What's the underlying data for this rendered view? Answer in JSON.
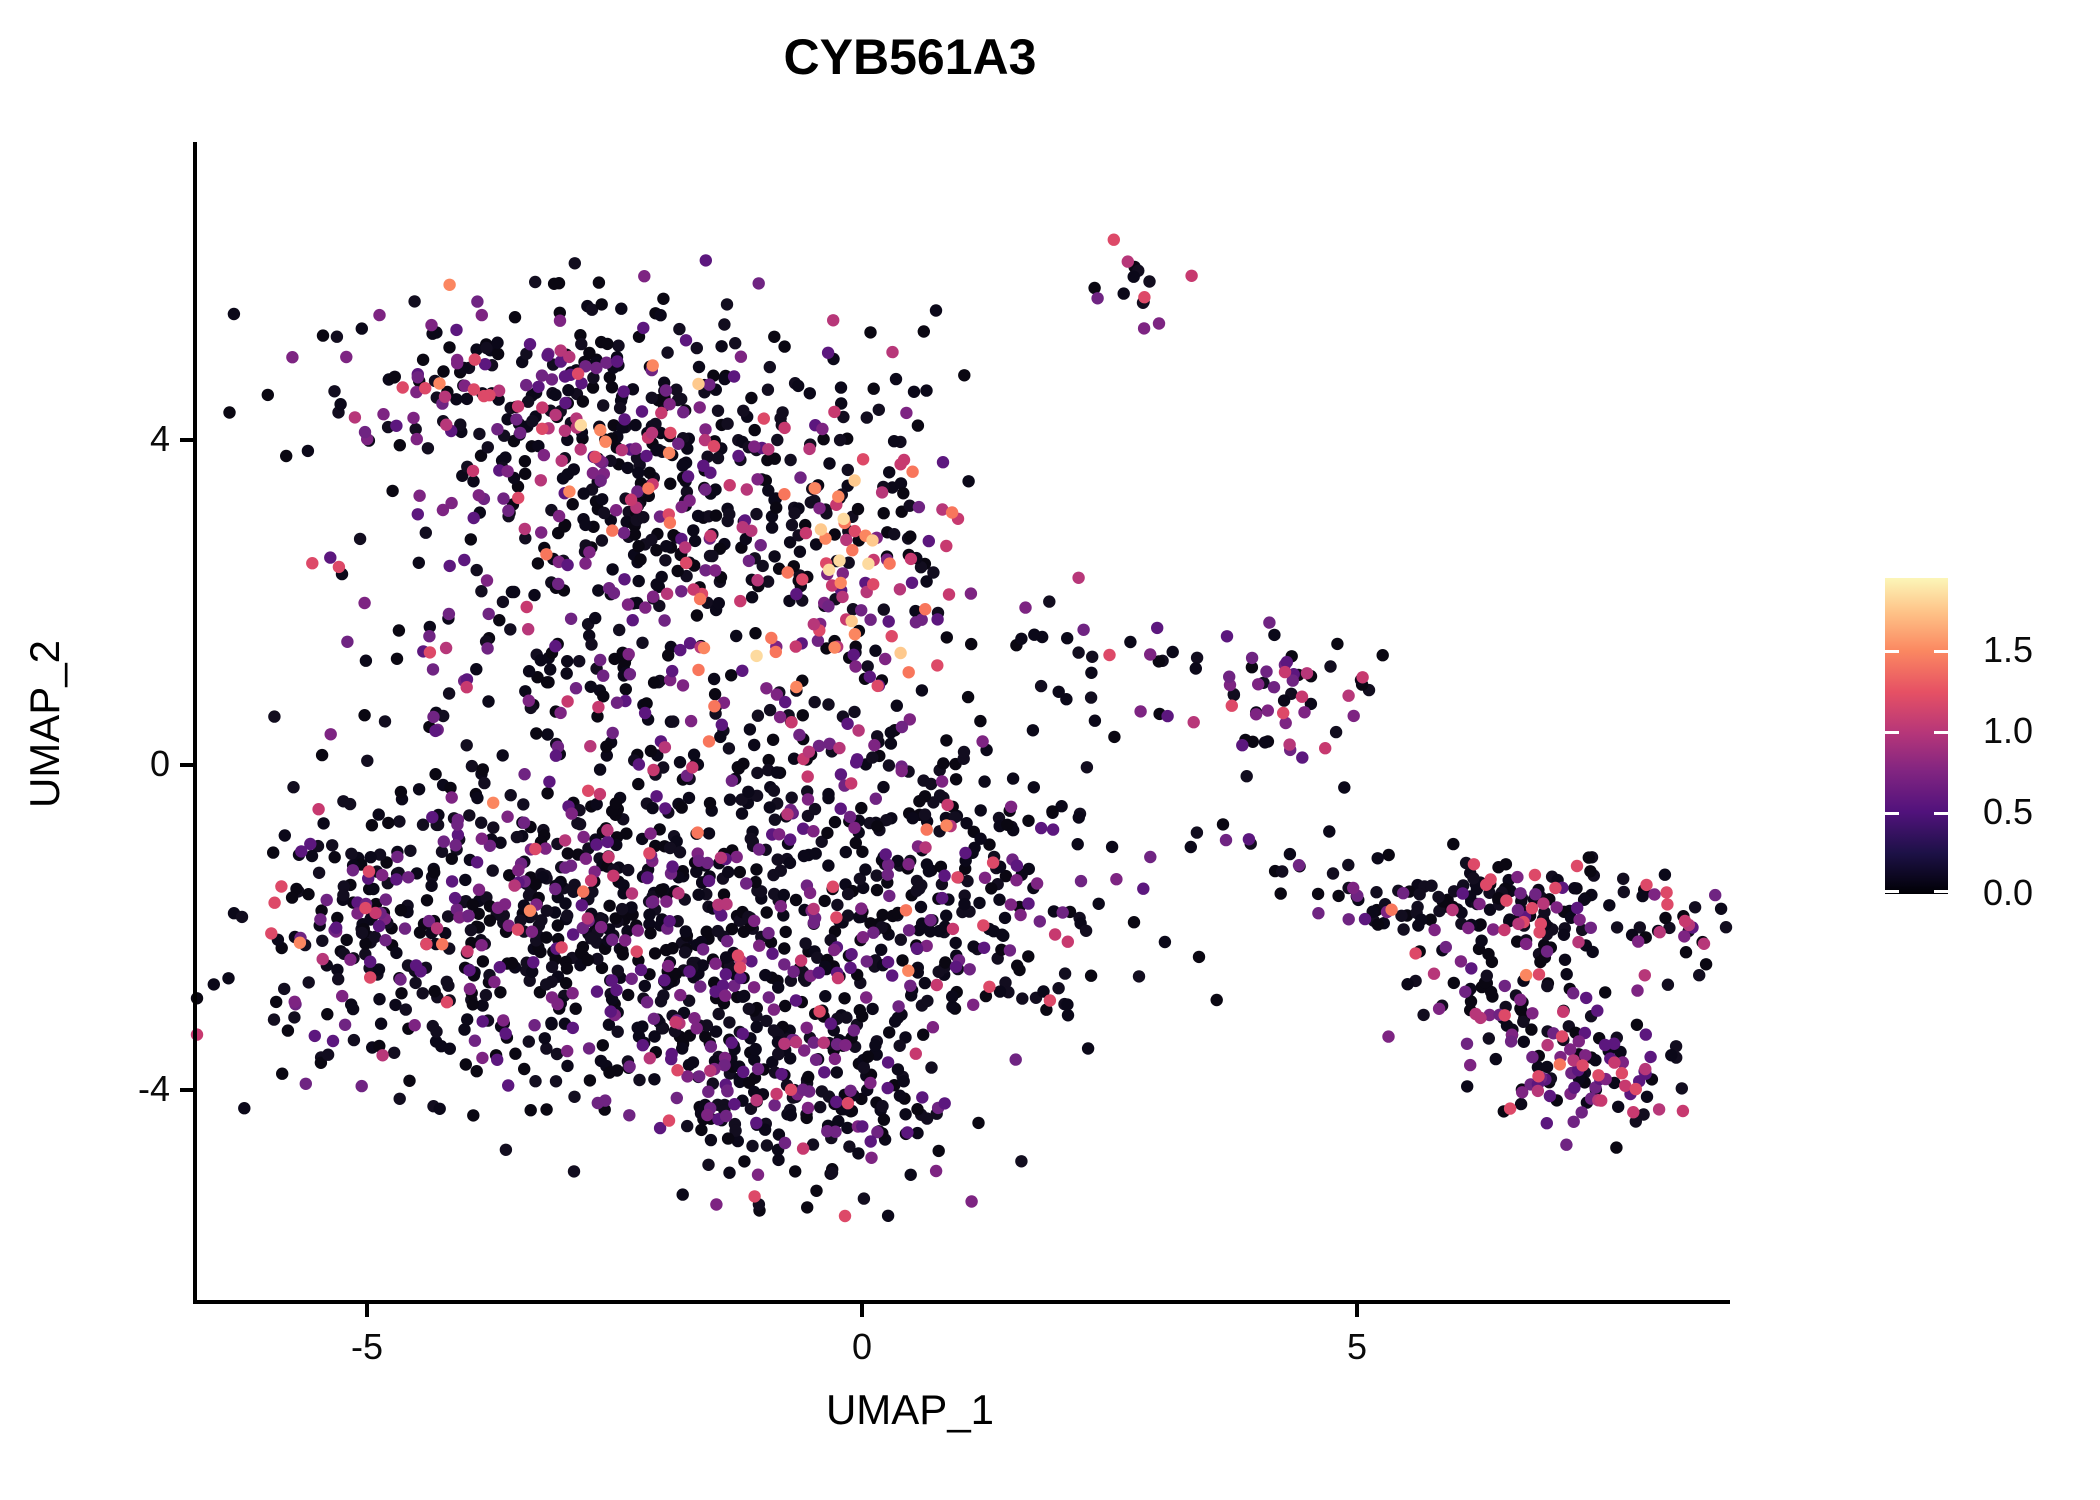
{
  "title": "CYB561A3",
  "chart_data": {
    "type": "scatter",
    "title": "CYB561A3",
    "xlabel": "UMAP_1",
    "ylabel": "UMAP_2",
    "xlim": [
      -6.7,
      8.8
    ],
    "ylim": [
      -6.6,
      7.7
    ],
    "grid": false,
    "x_ticks": [
      {
        "value": -5,
        "label": "-5"
      },
      {
        "value": 0,
        "label": "0"
      },
      {
        "value": 5,
        "label": "5"
      }
    ],
    "y_ticks": [
      {
        "value": 4,
        "label": "4"
      },
      {
        "value": 0,
        "label": "0"
      },
      {
        "value": -4,
        "label": "-4"
      }
    ],
    "colormap": "magma",
    "legend": {
      "position": "right",
      "min": 0.0,
      "max": 1.95,
      "ticks": [
        {
          "value": 1.5,
          "label": "1.5"
        },
        {
          "value": 1.0,
          "label": "1.0"
        },
        {
          "value": 0.5,
          "label": "0.5"
        },
        {
          "value": 0.0,
          "label": "0.0"
        }
      ],
      "gradient_stops": [
        {
          "pos": 0.0,
          "color": "#000004"
        },
        {
          "pos": 0.13,
          "color": "#1D1147"
        },
        {
          "pos": 0.26,
          "color": "#51127C"
        },
        {
          "pos": 0.39,
          "color": "#822581"
        },
        {
          "pos": 0.51,
          "color": "#B63679"
        },
        {
          "pos": 0.64,
          "color": "#E65164"
        },
        {
          "pos": 0.77,
          "color": "#FB8861"
        },
        {
          "pos": 0.89,
          "color": "#FEC287"
        },
        {
          "pos": 1.0,
          "color": "#FCF6B8"
        }
      ]
    },
    "expression_bins": [
      {
        "value": 0.0,
        "colors": [
          "#0B0819",
          "#0A0712",
          "#120D1F"
        ]
      },
      {
        "value": 0.5,
        "colors": [
          "#5C177E",
          "#6F2482",
          "#7D2482"
        ]
      },
      {
        "value": 1.0,
        "colors": [
          "#B73779",
          "#C7396F",
          "#DD4968"
        ]
      },
      {
        "value": 1.5,
        "colors": [
          "#F8765C",
          "#FB8660"
        ]
      },
      {
        "value": 1.8,
        "colors": [
          "#FEC98D",
          "#FDDA9F"
        ]
      }
    ],
    "point_radius_px": 6.2,
    "n_points_total": 2877,
    "clusters": [
      {
        "name": "topleft-upper",
        "shape": "gauss",
        "cx": -3.2,
        "cy": 4.5,
        "sx": 1.05,
        "sy": 0.72,
        "n": 270,
        "weights": [
          0.66,
          0.23,
          0.08,
          0.025,
          0.005
        ]
      },
      {
        "name": "topleft-lower",
        "shape": "gauss",
        "cx": -1.62,
        "cy": 3.5,
        "sx": 0.85,
        "sy": 0.8,
        "n": 230,
        "weights": [
          0.66,
          0.22,
          0.09,
          0.02,
          0.01
        ]
      },
      {
        "name": "hotspot-center",
        "shape": "gauss",
        "cx": 0.05,
        "cy": 2.4,
        "sx": 0.5,
        "sy": 0.85,
        "n": 135,
        "weights": [
          0.4,
          0.2,
          0.22,
          0.12,
          0.06
        ]
      },
      {
        "name": "topleft-fringe",
        "shape": "gauss",
        "cx": -2.55,
        "cy": 2.5,
        "sx": 1.2,
        "sy": 0.5,
        "n": 90,
        "weights": [
          0.62,
          0.26,
          0.09,
          0.03,
          0.0
        ]
      },
      {
        "name": "bridge-top",
        "shape": "gauss",
        "cx": 0.6,
        "cy": 4.85,
        "sx": 0.45,
        "sy": 0.4,
        "n": 13,
        "weights": [
          0.62,
          0.15,
          0.23,
          0.0,
          0.0
        ]
      },
      {
        "name": "top-small-clump",
        "shape": "gauss",
        "cx": 2.78,
        "cy": 5.88,
        "sx": 0.24,
        "sy": 0.3,
        "n": 15,
        "weights": [
          0.55,
          0.15,
          0.3,
          0.0,
          0.0
        ]
      },
      {
        "name": "mid-band",
        "shape": "gauss",
        "cx": -2.3,
        "cy": 1.05,
        "sx": 1.5,
        "sy": 0.6,
        "n": 150,
        "weights": [
          0.58,
          0.25,
          0.11,
          0.05,
          0.01
        ]
      },
      {
        "name": "bottomleft-west",
        "shape": "gauss",
        "cx": -3.7,
        "cy": -1.9,
        "sx": 1.1,
        "sy": 0.95,
        "n": 430,
        "weights": [
          0.72,
          0.22,
          0.05,
          0.01,
          0.0
        ]
      },
      {
        "name": "bottomleft-core",
        "shape": "gauss",
        "cx": -1.5,
        "cy": -2.7,
        "sx": 1.05,
        "sy": 1.0,
        "n": 390,
        "weights": [
          0.72,
          0.23,
          0.05,
          0.0,
          0.0
        ]
      },
      {
        "name": "bottomleft-tip",
        "shape": "gauss",
        "cx": -0.5,
        "cy": -4.2,
        "sx": 0.9,
        "sy": 0.55,
        "n": 170,
        "weights": [
          0.7,
          0.25,
          0.05,
          0.0,
          0.0
        ]
      },
      {
        "name": "bottomleft-east",
        "shape": "gauss",
        "cx": 0.8,
        "cy": -1.7,
        "sx": 0.95,
        "sy": 0.85,
        "n": 250,
        "weights": [
          0.74,
          0.2,
          0.05,
          0.01,
          0.0
        ]
      },
      {
        "name": "bottomleft-north",
        "shape": "gauss",
        "cx": -0.8,
        "cy": -0.45,
        "sx": 1.25,
        "sy": 0.7,
        "n": 210,
        "weights": [
          0.7,
          0.23,
          0.06,
          0.01,
          0.0
        ]
      },
      {
        "name": "left-tip",
        "shape": "gauss",
        "cx": -5.35,
        "cy": -2.1,
        "sx": 0.45,
        "sy": 0.75,
        "n": 70,
        "weights": [
          0.7,
          0.24,
          0.06,
          0.0,
          0.0
        ]
      },
      {
        "name": "mid-right-small",
        "shape": "gauss",
        "cx": 2.15,
        "cy": 1.5,
        "sx": 0.5,
        "sy": 0.45,
        "n": 22,
        "weights": [
          0.7,
          0.2,
          0.1,
          0.0,
          0.0
        ]
      },
      {
        "name": "mid-right-pair",
        "shape": "gauss",
        "cx": 3.4,
        "cy": 0.9,
        "sx": 0.35,
        "sy": 0.35,
        "n": 8,
        "weights": [
          0.65,
          0.25,
          0.1,
          0.0,
          0.0
        ]
      },
      {
        "name": "right-mid-cluster",
        "shape": "gauss",
        "cx": 4.35,
        "cy": 0.85,
        "sx": 0.45,
        "sy": 0.5,
        "n": 52,
        "weights": [
          0.6,
          0.25,
          0.15,
          0.0,
          0.0
        ]
      },
      {
        "name": "chain-to-right",
        "shape": "line",
        "x1": 2.6,
        "y1": -0.6,
        "x2": 5.7,
        "y2": -1.85,
        "jitter": 0.18,
        "n": 22,
        "weights": [
          0.85,
          0.15,
          0.0,
          0.0,
          0.0
        ]
      },
      {
        "name": "right-band",
        "shape": "gauss",
        "cx": 6.35,
        "cy": -1.75,
        "sx": 0.8,
        "sy": 0.27,
        "n": 140,
        "weights": [
          0.66,
          0.24,
          0.09,
          0.01,
          0.0
        ]
      },
      {
        "name": "right-arm",
        "shape": "gauss",
        "cx": 6.55,
        "cy": -2.75,
        "sx": 0.5,
        "sy": 0.5,
        "n": 85,
        "weights": [
          0.6,
          0.29,
          0.1,
          0.01,
          0.0
        ]
      },
      {
        "name": "right-blob",
        "shape": "gauss",
        "cx": 7.3,
        "cy": -3.85,
        "sx": 0.5,
        "sy": 0.33,
        "n": 95,
        "weights": [
          0.5,
          0.36,
          0.12,
          0.02,
          0.0
        ]
      },
      {
        "name": "right-tip",
        "shape": "gauss",
        "cx": 8.2,
        "cy": -2.0,
        "sx": 0.32,
        "sy": 0.3,
        "n": 30,
        "weights": [
          0.55,
          0.3,
          0.15,
          0.0,
          0.0
        ]
      }
    ]
  }
}
